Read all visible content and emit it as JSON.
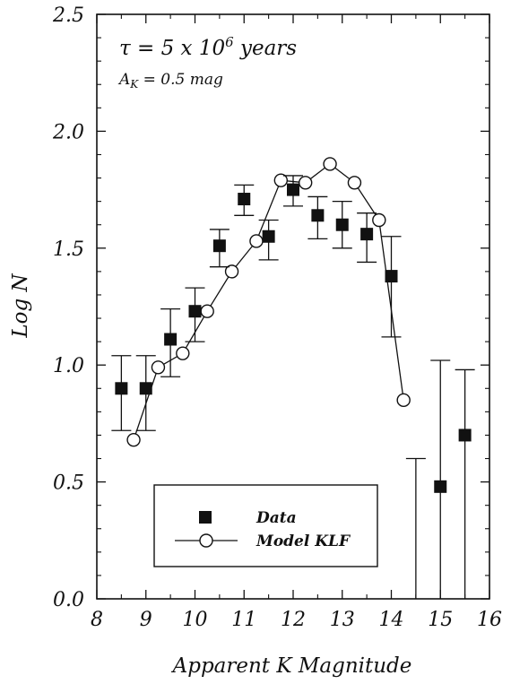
{
  "chart_data": {
    "type": "scatter",
    "xlabel": "Apparent K Magnitude",
    "ylabel": "Log N",
    "xlim": [
      8,
      16
    ],
    "ylim": [
      0,
      2.5
    ],
    "x_ticks": [
      "8",
      "9",
      "10",
      "11",
      "12",
      "13",
      "14",
      "15",
      "16"
    ],
    "y_ticks": [
      "0.0",
      "0.5",
      "1.0",
      "1.5",
      "2.0",
      "2.5"
    ],
    "annotations": {
      "tau_line": "τ = 5 x 10",
      "tau_exponent": "6",
      "tau_unit": " years",
      "extinction": "A",
      "extinction_sub": "K",
      "extinction_value": " = 0.5 mag"
    },
    "legend": {
      "placement": "bottom-center",
      "entries": [
        "Data",
        "Model KLF"
      ]
    },
    "series": [
      {
        "name": "Data",
        "marker": "filled-square",
        "x": [
          8.5,
          9.0,
          9.5,
          10.0,
          10.5,
          11.0,
          11.5,
          12.0,
          12.5,
          13.0,
          13.5,
          14.0,
          15.0,
          15.5
        ],
        "y": [
          0.9,
          0.9,
          1.11,
          1.23,
          1.51,
          1.71,
          1.55,
          1.75,
          1.64,
          1.6,
          1.56,
          1.38,
          0.48,
          0.7
        ],
        "err_low": [
          0.72,
          0.72,
          0.95,
          1.1,
          1.42,
          1.64,
          1.45,
          1.68,
          1.54,
          1.5,
          1.44,
          1.12,
          0.0,
          0.0
        ],
        "err_high": [
          1.04,
          1.04,
          1.24,
          1.33,
          1.58,
          1.77,
          1.62,
          1.81,
          1.72,
          1.7,
          1.65,
          1.55,
          1.02,
          0.98
        ]
      },
      {
        "name": "Model KLF",
        "marker": "open-circle-line",
        "x": [
          8.75,
          9.25,
          9.75,
          10.25,
          10.75,
          11.25,
          11.75,
          12.25,
          12.75,
          13.25,
          13.75,
          14.25
        ],
        "y": [
          0.68,
          0.99,
          1.05,
          1.23,
          1.4,
          1.53,
          1.79,
          1.78,
          1.86,
          1.78,
          1.62,
          0.85
        ]
      }
    ],
    "extra_error_bar": {
      "x": 14.5,
      "low": 0.0,
      "high": 0.6
    }
  }
}
